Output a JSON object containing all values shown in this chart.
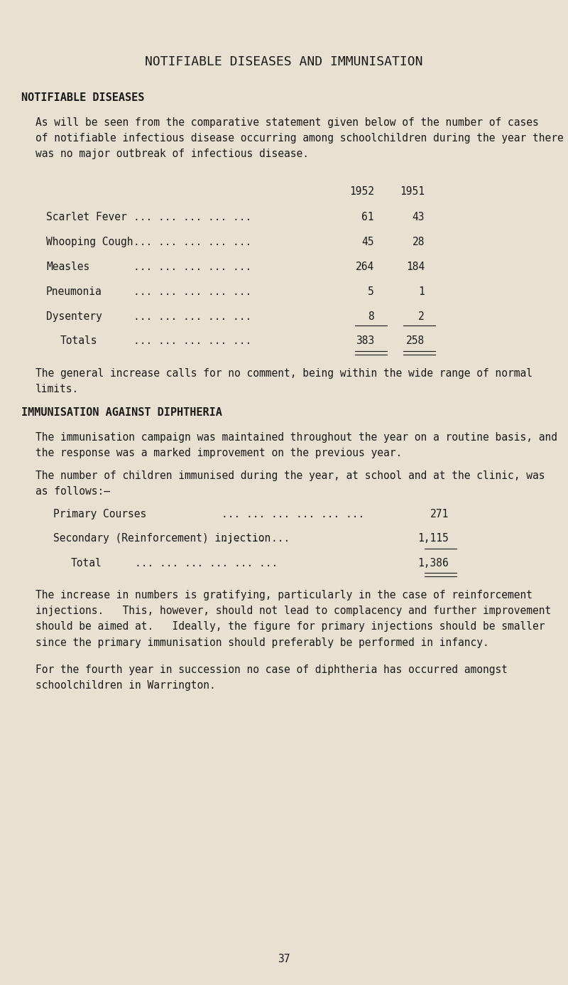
{
  "bg_color": "#e8e0d0",
  "text_color": "#1a1a1a",
  "title": "NOTIFIABLE DISEASES AND IMMUNISATION",
  "section1_heading": "NOTIFIABLE DISEASES",
  "para1": "As will be seen from the comparative statement given below of the number of cases\nof notifiable infectious disease occurring among schoolchildren during the year there\nwas no major outbreak of infectious disease.",
  "col_headers": [
    "1952",
    "1951"
  ],
  "diseases": [
    "Scarlet Fever",
    "Whooping Cough",
    "Measles",
    "Pneumonia",
    "Dysentery"
  ],
  "dots_disease": [
    "... ... ... ... ...",
    "... ... ... ... ...",
    "... ... ... ... ...",
    "... ... ... ... ...",
    "... ... ... ... ..."
  ],
  "values_1952": [
    "61",
    "45",
    "264",
    "5",
    "8"
  ],
  "values_1951": [
    "43",
    "28",
    "184",
    "1",
    "2"
  ],
  "totals_label": "Totals",
  "dots_totals": "... ... ... ... ...",
  "total_1952": "383",
  "total_1951": "258",
  "para2": "The general increase calls for no comment, being within the wide range of normal\nlimits.",
  "section2_heading": "IMMUNISATION AGAINST DIPHTHERIA",
  "para3": "The immunisation campaign was maintained throughout the year on a routine basis, and\nthe response was a marked improvement on the previous year.",
  "para4": "The number of children immunised during the year, at school and at the clinic, was\nas follows:–",
  "immun_items": [
    "Primary Courses",
    "Secondary (Reinforcement) injection"
  ],
  "immun_dots": [
    "... ... ... ... ... ...",
    "... ... ..."
  ],
  "immun_values": [
    "271",
    "1,115"
  ],
  "immun_total_label": "Total",
  "immun_total_dots": "... ... ... ... ... ...",
  "immun_total_value": "1,386",
  "para5": "The increase in numbers is gratifying, particularly in the case of reinforcement\ninjections.   This, however, should not lead to complacency and further improvement\nshould be aimed at.   Ideally, the figure for primary injections should be smaller\nsince the primary immunisation should preferably be performed in infancy.",
  "para6": "For the fourth year in succession no case of diphtheria has occurred amongst\nschoolchildren in Warrington.",
  "page_number": "37",
  "font_family": "monospace",
  "title_fontsize": 13,
  "heading_fontsize": 11,
  "body_fontsize": 10.5
}
